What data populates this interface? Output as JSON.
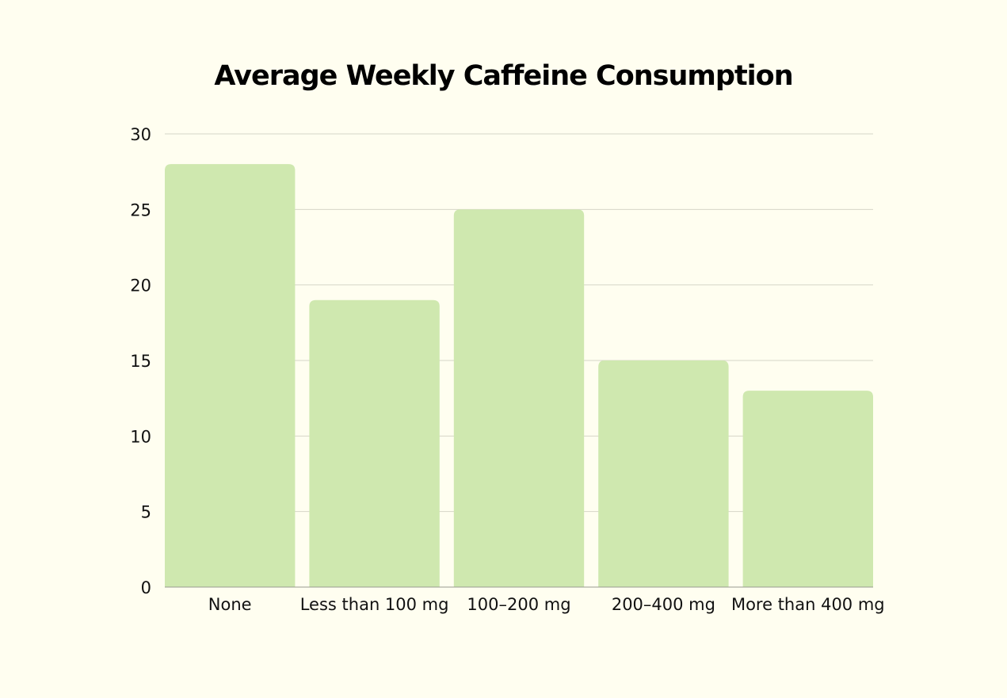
{
  "chart_data": {
    "type": "bar",
    "title": "Average Weekly Caffeine Consumption",
    "xlabel": "",
    "ylabel": "",
    "categories": [
      "None",
      "Less than 100 mg",
      "100–200 mg",
      "200–400 mg",
      "More than 400 mg"
    ],
    "values": [
      28,
      19,
      25,
      15,
      13
    ],
    "ylim": [
      0,
      30
    ],
    "yticks": [
      0,
      5,
      10,
      15,
      20,
      25,
      30
    ],
    "grid": true,
    "legend": "none",
    "colors": {
      "bar": "#CFE8AF",
      "background": "#FFFEF0",
      "gridline": "#D6D6C8",
      "text": "#111111"
    }
  }
}
